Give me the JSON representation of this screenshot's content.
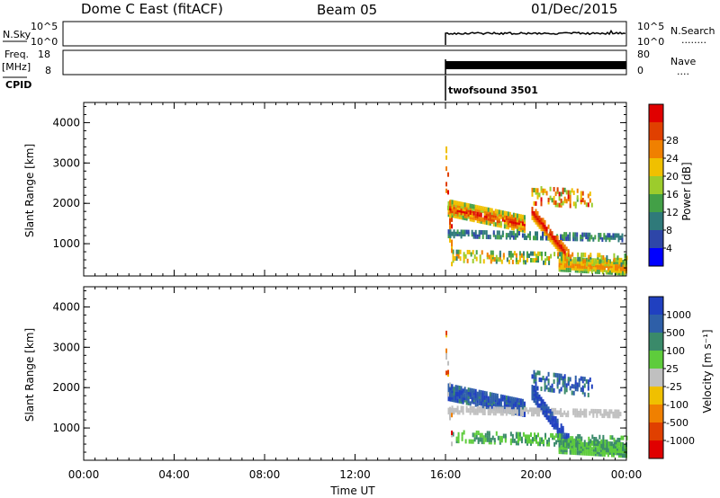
{
  "header": {
    "station": "Dome C East (fitACF)",
    "beam": "Beam 05",
    "date": "01/Dec/2015"
  },
  "panels": {
    "nsky": {
      "label": "N.Sky",
      "ticks_left": [
        "10^5",
        "10^0"
      ],
      "ticks_right": [
        "10^5",
        "10^0"
      ],
      "right_label": "N.Search",
      "right_dots": "........"
    },
    "freq": {
      "label_top": "Freq.",
      "label_bottom": "[MHz]",
      "ticks_left": [
        "18",
        "8"
      ],
      "ticks_right": [
        "80",
        "0"
      ],
      "right_label": "Nave",
      "right_dots": "...."
    },
    "cpid": {
      "label": "CPID",
      "program": "twofsound 3501"
    }
  },
  "chart_data": [
    {
      "type": "heatmap",
      "name": "power",
      "ylabel": "Slant Range [km]",
      "xlabel": "",
      "ylim": [
        200,
        4500
      ],
      "yticks": [
        "1000",
        "2000",
        "3000",
        "4000"
      ],
      "data_start_hour": 16.0,
      "colorbar": {
        "label": "Power [dB]",
        "colors": [
          "#0000ff",
          "#2e46a8",
          "#2f7a7a",
          "#43a047",
          "#9ccc2c",
          "#f0c000",
          "#f08000",
          "#e04000",
          "#e00000"
        ],
        "tick_labels": [
          "4",
          "8",
          "12",
          "16",
          "20",
          "24",
          "28"
        ]
      }
    },
    {
      "type": "heatmap",
      "name": "velocity",
      "ylabel": "Slant Range [km]",
      "xlabel": "Time UT",
      "ylim": [
        200,
        4500
      ],
      "yticks": [
        "1000",
        "2000",
        "3000",
        "4000"
      ],
      "xticks": [
        "00:00",
        "04:00",
        "08:00",
        "12:00",
        "16:00",
        "20:00",
        "00:00"
      ],
      "colorbar": {
        "label": "Velocity [m s⁻¹]",
        "colors": [
          "#2040c0",
          "#2e5fa8",
          "#3a8a6a",
          "#5ecc3c",
          "#c0c0c0",
          "#f0c000",
          "#f08000",
          "#e04000",
          "#e00000"
        ],
        "tick_labels": [
          "1000",
          "500",
          "100",
          "25",
          "-25",
          "-100",
          "-500",
          "-1000"
        ]
      }
    }
  ]
}
